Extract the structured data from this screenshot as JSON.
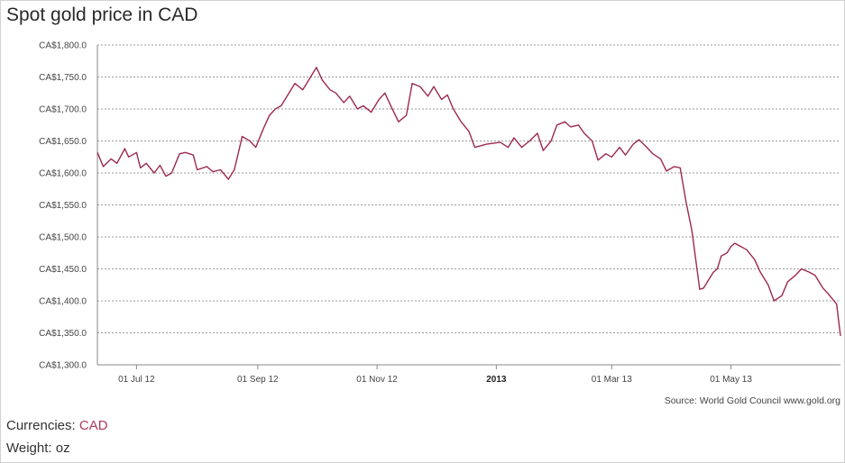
{
  "title": "Spot gold price in CAD",
  "source": "Source: World Gold Council www.gold.org",
  "currencies_label": "Currencies:",
  "currencies_value": "CAD",
  "weight_label": "Weight:",
  "weight_value": "oz",
  "colors": {
    "line": "#9c2a4e",
    "grid": "#9a9a9a",
    "axis": "#888888"
  },
  "chart_data": {
    "type": "line",
    "title": "Spot gold price in CAD",
    "xlabel": "",
    "ylabel": "",
    "ylim": [
      1300,
      1800
    ],
    "xlim": [
      "2012-06-11",
      "2013-06-26"
    ],
    "grid": true,
    "ytick_labels": [
      "CA$1,800.0",
      "CA$1,750.0",
      "CA$1,700.0",
      "CA$1,650.0",
      "CA$1,600.0",
      "CA$1,550.0",
      "CA$1,500.0",
      "CA$1,450.0",
      "CA$1,400.0",
      "CA$1,350.0",
      "CA$1,300.0"
    ],
    "ytick_values": [
      1800,
      1750,
      1700,
      1650,
      1600,
      1550,
      1500,
      1450,
      1400,
      1350,
      1300
    ],
    "xticks": [
      {
        "date": "2012-07-01",
        "label": "01 Jul 12",
        "bold": false
      },
      {
        "date": "2012-09-01",
        "label": "01 Sep 12",
        "bold": false
      },
      {
        "date": "2012-11-01",
        "label": "01 Nov 12",
        "bold": false
      },
      {
        "date": "2013-01-01",
        "label": "2013",
        "bold": true
      },
      {
        "date": "2013-03-01",
        "label": "01 Mar 13",
        "bold": false
      },
      {
        "date": "2013-05-01",
        "label": "01 May 13",
        "bold": false
      }
    ],
    "series": [
      {
        "points": [
          [
            "2012-06-11",
            1632
          ],
          [
            "2012-06-14",
            1610
          ],
          [
            "2012-06-18",
            1622
          ],
          [
            "2012-06-21",
            1615
          ],
          [
            "2012-06-25",
            1638
          ],
          [
            "2012-06-27",
            1625
          ],
          [
            "2012-07-01",
            1632
          ],
          [
            "2012-07-03",
            1608
          ],
          [
            "2012-07-06",
            1615
          ],
          [
            "2012-07-10",
            1600
          ],
          [
            "2012-07-13",
            1612
          ],
          [
            "2012-07-16",
            1595
          ],
          [
            "2012-07-19",
            1600
          ],
          [
            "2012-07-23",
            1630
          ],
          [
            "2012-07-26",
            1632
          ],
          [
            "2012-07-30",
            1628
          ],
          [
            "2012-08-01",
            1605
          ],
          [
            "2012-08-06",
            1610
          ],
          [
            "2012-08-09",
            1602
          ],
          [
            "2012-08-13",
            1605
          ],
          [
            "2012-08-17",
            1590
          ],
          [
            "2012-08-20",
            1605
          ],
          [
            "2012-08-22",
            1630
          ],
          [
            "2012-08-24",
            1657
          ],
          [
            "2012-08-28",
            1650
          ],
          [
            "2012-08-31",
            1640
          ],
          [
            "2012-09-04",
            1670
          ],
          [
            "2012-09-07",
            1690
          ],
          [
            "2012-09-10",
            1700
          ],
          [
            "2012-09-13",
            1705
          ],
          [
            "2012-09-17",
            1725
          ],
          [
            "2012-09-20",
            1740
          ],
          [
            "2012-09-24",
            1730
          ],
          [
            "2012-09-27",
            1745
          ],
          [
            "2012-10-01",
            1765
          ],
          [
            "2012-10-04",
            1745
          ],
          [
            "2012-10-08",
            1730
          ],
          [
            "2012-10-11",
            1725
          ],
          [
            "2012-10-15",
            1710
          ],
          [
            "2012-10-18",
            1720
          ],
          [
            "2012-10-22",
            1700
          ],
          [
            "2012-10-25",
            1705
          ],
          [
            "2012-10-29",
            1695
          ],
          [
            "2012-11-02",
            1715
          ],
          [
            "2012-11-05",
            1725
          ],
          [
            "2012-11-08",
            1705
          ],
          [
            "2012-11-12",
            1680
          ],
          [
            "2012-11-16",
            1690
          ],
          [
            "2012-11-19",
            1740
          ],
          [
            "2012-11-23",
            1735
          ],
          [
            "2012-11-27",
            1720
          ],
          [
            "2012-11-30",
            1735
          ],
          [
            "2012-12-04",
            1715
          ],
          [
            "2012-12-07",
            1722
          ],
          [
            "2012-12-10",
            1700
          ],
          [
            "2012-12-14",
            1680
          ],
          [
            "2012-12-18",
            1665
          ],
          [
            "2012-12-21",
            1640
          ],
          [
            "2012-12-27",
            1645
          ],
          [
            "2013-01-03",
            1648
          ],
          [
            "2013-01-07",
            1640
          ],
          [
            "2013-01-10",
            1655
          ],
          [
            "2013-01-14",
            1640
          ],
          [
            "2013-01-18",
            1650
          ],
          [
            "2013-01-22",
            1662
          ],
          [
            "2013-01-25",
            1635
          ],
          [
            "2013-01-29",
            1650
          ],
          [
            "2013-02-01",
            1675
          ],
          [
            "2013-02-05",
            1680
          ],
          [
            "2013-02-08",
            1672
          ],
          [
            "2013-02-12",
            1675
          ],
          [
            "2013-02-15",
            1662
          ],
          [
            "2013-02-19",
            1650
          ],
          [
            "2013-02-22",
            1620
          ],
          [
            "2013-02-26",
            1630
          ],
          [
            "2013-03-01",
            1625
          ],
          [
            "2013-03-05",
            1640
          ],
          [
            "2013-03-08",
            1628
          ],
          [
            "2013-03-12",
            1645
          ],
          [
            "2013-03-15",
            1652
          ],
          [
            "2013-03-19",
            1640
          ],
          [
            "2013-03-22",
            1630
          ],
          [
            "2013-03-26",
            1622
          ],
          [
            "2013-03-29",
            1603
          ],
          [
            "2013-04-02",
            1610
          ],
          [
            "2013-04-05",
            1608
          ],
          [
            "2013-04-08",
            1555
          ],
          [
            "2013-04-11",
            1510
          ],
          [
            "2013-04-15",
            1418
          ],
          [
            "2013-04-17",
            1420
          ],
          [
            "2013-04-19",
            1430
          ],
          [
            "2013-04-22",
            1445
          ],
          [
            "2013-04-24",
            1450
          ],
          [
            "2013-04-26",
            1470
          ],
          [
            "2013-04-29",
            1475
          ],
          [
            "2013-05-01",
            1485
          ],
          [
            "2013-05-03",
            1490
          ],
          [
            "2013-05-06",
            1485
          ],
          [
            "2013-05-09",
            1480
          ],
          [
            "2013-05-13",
            1465
          ],
          [
            "2013-05-16",
            1445
          ],
          [
            "2013-05-20",
            1425
          ],
          [
            "2013-05-23",
            1400
          ],
          [
            "2013-05-27",
            1408
          ],
          [
            "2013-05-30",
            1430
          ],
          [
            "2013-06-03",
            1440
          ],
          [
            "2013-06-06",
            1450
          ],
          [
            "2013-06-10",
            1445
          ],
          [
            "2013-06-13",
            1440
          ],
          [
            "2013-06-17",
            1420
          ],
          [
            "2013-06-20",
            1410
          ],
          [
            "2013-06-24",
            1395
          ],
          [
            "2013-06-26",
            1345
          ]
        ]
      }
    ]
  }
}
